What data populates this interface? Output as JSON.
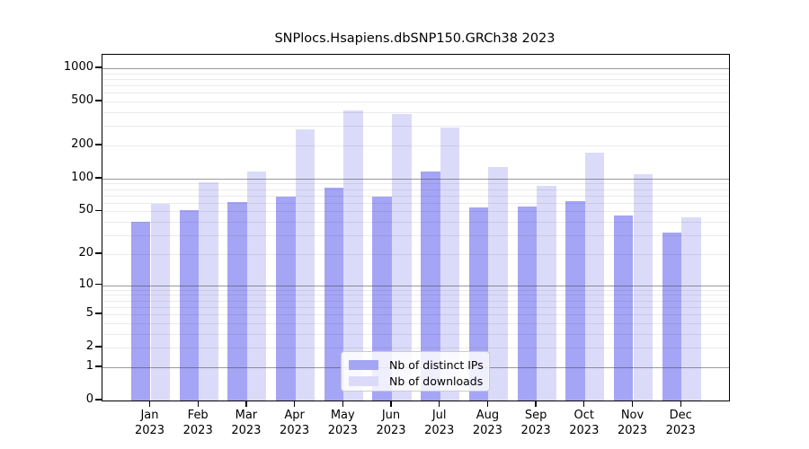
{
  "title": "SNPlocs.Hsapiens.dbSNP150.GRCh38 2023",
  "colors": {
    "distinct_ips_bar": "#a5a5f6",
    "downloads_bar": "#dbdbf9",
    "major_gridline": "#8c8c8c",
    "minor_gridline": "#e9e9e9",
    "axis_frame": "#000000",
    "background": "#ffffff"
  },
  "legend": {
    "items": [
      {
        "label": "Nb of distinct IPs",
        "color": "#a5a5f6"
      },
      {
        "label": "Nb of downloads",
        "color": "#dbdbf9"
      }
    ]
  },
  "chart_data": {
    "type": "bar",
    "title": "SNPlocs.Hsapiens.dbSNP150.GRCh38 2023",
    "categories": [
      "Jan",
      "Feb",
      "Mar",
      "Apr",
      "May",
      "Jun",
      "Jul",
      "Aug",
      "Sep",
      "Oct",
      "Nov",
      "Dec"
    ],
    "category_year": "2023",
    "series": [
      {
        "name": "Nb of distinct IPs",
        "color": "#a5a5f6",
        "values": [
          40,
          51,
          61,
          68,
          82,
          69,
          117,
          54,
          55,
          62,
          46,
          32
        ]
      },
      {
        "name": "Nb of downloads",
        "color": "#dbdbf9",
        "values": [
          59,
          92,
          115,
          280,
          418,
          389,
          291,
          128,
          85,
          172,
          109,
          44
        ]
      }
    ],
    "xlabel": "",
    "ylabel": "",
    "y_scale": "log1p",
    "y_ticks": [
      1000,
      500,
      200,
      100,
      50,
      20,
      10,
      5,
      2,
      1,
      0
    ],
    "ylim": [
      0,
      1200
    ],
    "grid": {
      "visible": true,
      "major_at": [
        1,
        10,
        100,
        1000
      ],
      "minor_at_multiples": [
        2,
        3,
        4,
        5,
        6,
        7,
        8,
        9
      ]
    },
    "legend_position": "lower center"
  }
}
